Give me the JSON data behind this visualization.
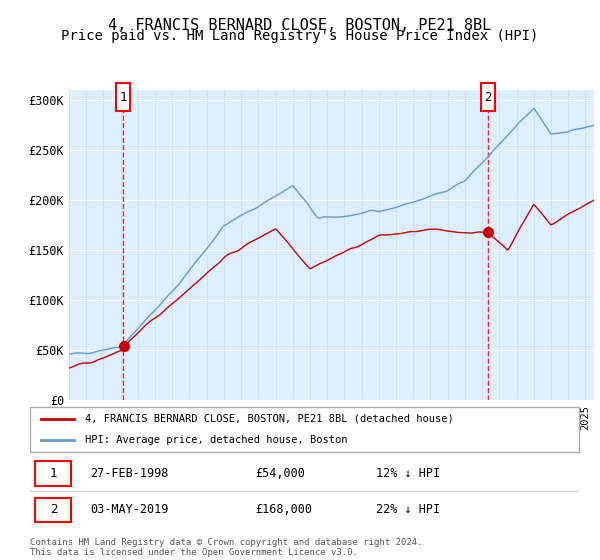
{
  "title": "4, FRANCIS BERNARD CLOSE, BOSTON, PE21 8BL",
  "subtitle": "Price paid vs. HM Land Registry's House Price Index (HPI)",
  "ylim": [
    0,
    310000
  ],
  "yticks": [
    0,
    50000,
    100000,
    150000,
    200000,
    250000,
    300000
  ],
  "ytick_labels": [
    "£0",
    "£50K",
    "£100K",
    "£150K",
    "£200K",
    "£250K",
    "£300K"
  ],
  "xstart_year": 1995,
  "xend_year": 2025.5,
  "sale1_year": 1998.15,
  "sale1_price": 54000,
  "sale1_label": "1",
  "sale1_date": "27-FEB-1998",
  "sale1_display_price": "£54,000",
  "sale1_hpi_rel": "12% ↓ HPI",
  "sale2_year": 2019.33,
  "sale2_price": 168000,
  "sale2_label": "2",
  "sale2_date": "03-MAY-2019",
  "sale2_display_price": "£168,000",
  "sale2_hpi_rel": "22% ↓ HPI",
  "property_line_color": "#cc0000",
  "hpi_line_color": "#6699cc",
  "plot_bg_color": "#ddeeff",
  "grid_color": "#ffffff",
  "legend_label_property": "4, FRANCIS BERNARD CLOSE, BOSTON, PE21 8BL (detached house)",
  "legend_label_hpi": "HPI: Average price, detached house, Boston",
  "footer_text": "Contains HM Land Registry data © Crown copyright and database right 2024.\nThis data is licensed under the Open Government Licence v3.0.",
  "title_fontsize": 11,
  "subtitle_fontsize": 10
}
